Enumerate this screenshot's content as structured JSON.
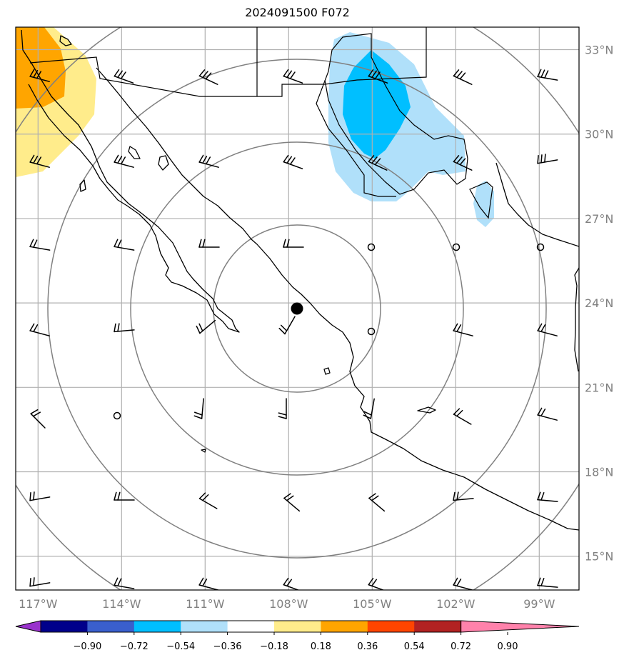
{
  "title": "2024091500 F072",
  "map": {
    "lat_labels": [
      {
        "lat": 33,
        "label": "33°N"
      },
      {
        "lat": 30,
        "label": "30°N"
      },
      {
        "lat": 27,
        "label": "27°N"
      },
      {
        "lat": 24,
        "label": "24°N"
      },
      {
        "lat": 21,
        "label": "21°N"
      },
      {
        "lat": 18,
        "label": "18°N"
      },
      {
        "lat": 15,
        "label": "15°N"
      }
    ],
    "lon_labels": [
      {
        "lon": -117,
        "label": "117°W"
      },
      {
        "lon": -114,
        "label": "114°W"
      },
      {
        "lon": -111,
        "label": "111°W"
      },
      {
        "lon": -108,
        "label": "108°W"
      },
      {
        "lon": -105,
        "label": "105°W"
      },
      {
        "lon": -102,
        "label": "102°W"
      },
      {
        "lon": -99,
        "label": "99°W"
      }
    ],
    "center_marker": {
      "lon": -107.7,
      "lat": 23.8
    }
  },
  "colorbar": {
    "colors": [
      "#9932cc",
      "#00008b",
      "#3a5fcd",
      "#00bfff",
      "#b0e0fa",
      "#ffffff",
      "#ffec8b",
      "#ffa500",
      "#ff4500",
      "#b22222",
      "#ff82ab"
    ],
    "tick_labels": [
      "−0.90",
      "−0.72",
      "−0.54",
      "−0.36",
      "−0.18",
      "0.18",
      "0.36",
      "0.54",
      "0.72",
      "0.90"
    ]
  }
}
